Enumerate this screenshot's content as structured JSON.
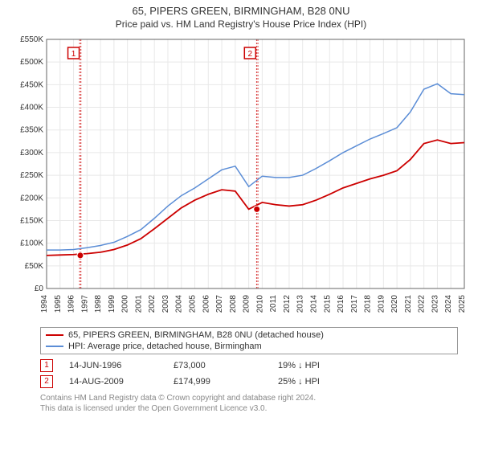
{
  "title": "65, PIPERS GREEN, BIRMINGHAM, B28 0NU",
  "subtitle": "Price paid vs. HM Land Registry's House Price Index (HPI)",
  "chart": {
    "type": "line",
    "background_color": "#ffffff",
    "grid_color": "#e8e8e8",
    "axis_color": "#666666",
    "text_color": "#333333",
    "tick_fontsize": 10,
    "x_years": [
      1994,
      1995,
      1996,
      1997,
      1998,
      1999,
      2000,
      2001,
      2002,
      2003,
      2004,
      2005,
      2006,
      2007,
      2008,
      2009,
      2010,
      2011,
      2012,
      2013,
      2014,
      2015,
      2016,
      2017,
      2018,
      2019,
      2020,
      2021,
      2022,
      2023,
      2024,
      2025
    ],
    "ylim": [
      0,
      550000
    ],
    "ytick_step": 50000,
    "yticks_labels": [
      "£0",
      "£50K",
      "£100K",
      "£150K",
      "£200K",
      "£250K",
      "£300K",
      "£350K",
      "£400K",
      "£450K",
      "£500K",
      "£550K"
    ],
    "series": [
      {
        "name": "property",
        "color": "#cc0000",
        "line_width": 1.8,
        "values": [
          73,
          74,
          75,
          77,
          80,
          86,
          96,
          110,
          132,
          155,
          178,
          195,
          208,
          218,
          215,
          175,
          190,
          185,
          182,
          185,
          195,
          208,
          222,
          232,
          242,
          250,
          260,
          285,
          320,
          328,
          320,
          322
        ]
      },
      {
        "name": "hpi",
        "color": "#5b8dd6",
        "line_width": 1.5,
        "values": [
          85,
          85,
          86,
          90,
          95,
          102,
          115,
          130,
          155,
          182,
          205,
          222,
          242,
          262,
          270,
          225,
          248,
          245,
          245,
          250,
          265,
          282,
          300,
          315,
          330,
          342,
          355,
          390,
          440,
          452,
          430,
          428
        ]
      }
    ],
    "shaded_bands": [
      {
        "from_year": 1996.45,
        "to_year": 1996.55,
        "fill": "#fdeaea",
        "dash_color": "#cc0000"
      },
      {
        "from_year": 2009.58,
        "to_year": 2009.68,
        "fill": "#fdeaea",
        "dash_color": "#cc0000"
      }
    ],
    "markers": [
      {
        "n": "1",
        "year": 1996.0,
        "price": 73,
        "box_color": "#cc0000"
      },
      {
        "n": "2",
        "year": 2009.1,
        "price": 175,
        "box_color": "#cc0000"
      }
    ]
  },
  "legend": {
    "items": [
      {
        "color": "#cc0000",
        "label": "65, PIPERS GREEN, BIRMINGHAM, B28 0NU (detached house)"
      },
      {
        "color": "#5b8dd6",
        "label": "HPI: Average price, detached house, Birmingham"
      }
    ]
  },
  "annotations": [
    {
      "n": "1",
      "date": "14-JUN-1996",
      "price": "£73,000",
      "delta": "19% ↓ HPI"
    },
    {
      "n": "2",
      "date": "14-AUG-2009",
      "price": "£174,999",
      "delta": "25% ↓ HPI"
    }
  ],
  "attribution": {
    "line1": "Contains HM Land Registry data © Crown copyright and database right 2024.",
    "line2": "This data is licensed under the Open Government Licence v3.0."
  }
}
